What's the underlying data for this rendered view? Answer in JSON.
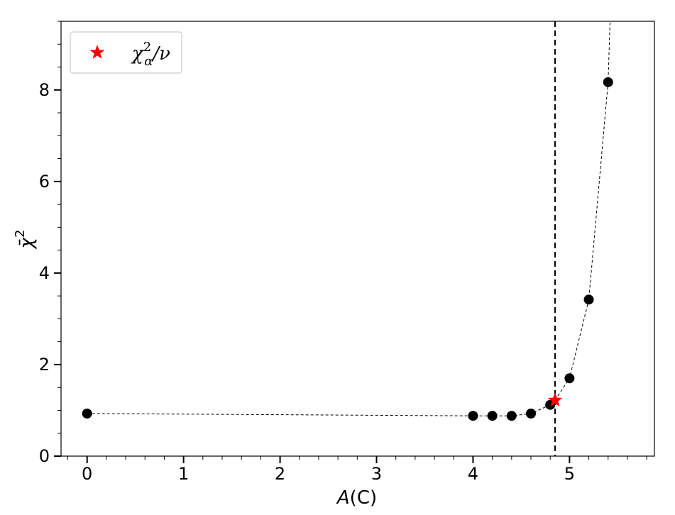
{
  "chart_data": {
    "type": "scatter",
    "xlabel_var": "A",
    "xlabel_unit": "(C)",
    "ylabel_base": "χ",
    "ylabel_bar": "̄",
    "ylabel_sup": "2",
    "xlim": [
      -0.27,
      5.88
    ],
    "ylim": [
      0,
      9.5
    ],
    "x_ticks": [
      0,
      1,
      2,
      3,
      4,
      5
    ],
    "y_ticks": [
      0,
      2,
      4,
      6,
      8
    ],
    "x_minor_step": 0.2,
    "y_minor_step": 0.5,
    "grid": false,
    "legend_position": "top-left",
    "series": [
      {
        "marker": "circle",
        "color": "#000000",
        "line_style": "dashed",
        "x": [
          0,
          4.0,
          4.2,
          4.4,
          4.6,
          4.8,
          5.0,
          5.2,
          5.4
        ],
        "y": [
          0.93,
          0.88,
          0.88,
          0.88,
          0.93,
          1.12,
          1.7,
          3.42,
          8.17
        ]
      }
    ],
    "fit_curve_extension": {
      "x": 5.42,
      "y": 9.5
    },
    "minimum": {
      "x": 4.85,
      "y": 1.22,
      "marker": "star",
      "color": "#ff0000",
      "legend_label": {
        "base": "χ",
        "sup": "2",
        "sub": "α",
        "suffix": "/ν"
      }
    },
    "vertical_line": {
      "x": 4.85,
      "style": "dashed",
      "color": "#000000"
    }
  }
}
